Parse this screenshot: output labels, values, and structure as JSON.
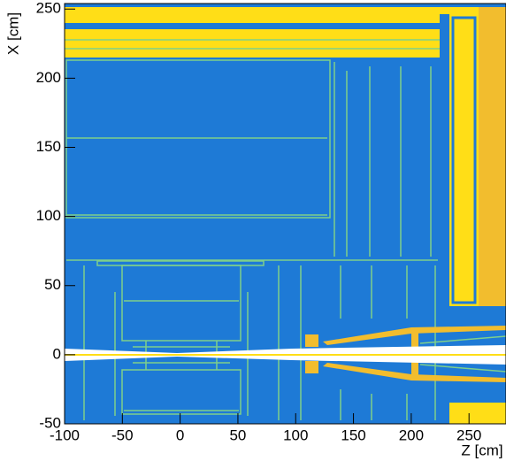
{
  "chart_data": {
    "type": "geometry",
    "x_label": "Z [cm]",
    "y_label": "X [cm]",
    "xlim": [
      -100,
      282
    ],
    "ylim": [
      -50,
      254
    ],
    "xticks": [
      -100,
      -50,
      0,
      50,
      100,
      150,
      200,
      250
    ],
    "yticks": [
      -50,
      0,
      50,
      100,
      150,
      200,
      250
    ]
  }
}
